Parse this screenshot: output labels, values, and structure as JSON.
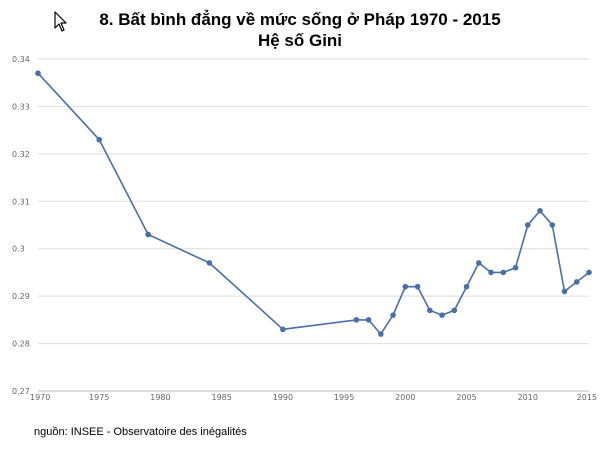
{
  "chart_data": {
    "type": "line",
    "title": "8. Bất bình đẳng về mức sống ở Pháp 1970 - 2015",
    "subtitle": "Hệ số Gini",
    "source": "nguồn: INSEE - Observatoire des inégalités",
    "xlabel": "",
    "ylabel": "",
    "xlim": [
      1970,
      2015
    ],
    "ylim": [
      0.27,
      0.34
    ],
    "xticks": [
      "1970",
      "1975",
      "1980",
      "1985",
      "1990",
      "1995",
      "2000",
      "2005",
      "2010",
      "2015"
    ],
    "yticks": [
      "0.34",
      "0.33",
      "0.32",
      "0.31",
      "0.3",
      "0.29",
      "0.28",
      "0.27"
    ],
    "grid": "horizontal",
    "line_color": "#4a6fa5",
    "series": [
      {
        "x": [
          1970,
          1975,
          1979,
          1984,
          1990,
          1996,
          1997,
          1998,
          1999,
          2000,
          2001,
          2002,
          2003,
          2004,
          2005,
          2006,
          2007,
          2008,
          2009,
          2010,
          2011,
          2012,
          2013,
          2014,
          2015
        ],
        "values": [
          0.337,
          0.323,
          0.303,
          0.297,
          0.283,
          0.285,
          0.285,
          0.282,
          0.286,
          0.292,
          0.292,
          0.287,
          0.286,
          0.287,
          0.292,
          0.297,
          0.295,
          0.295,
          0.296,
          0.305,
          0.308,
          0.305,
          0.291,
          0.293,
          0.295
        ]
      }
    ]
  }
}
